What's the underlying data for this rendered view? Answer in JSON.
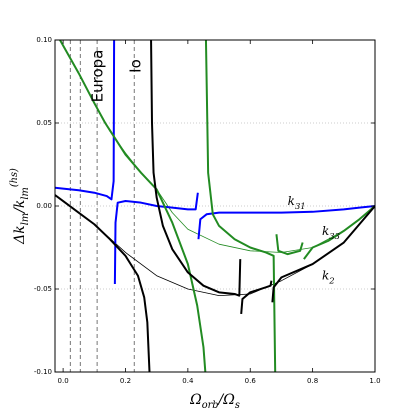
{
  "chart_data": {
    "type": "line",
    "xlabel": [
      {
        "text": "Ω"
      },
      {
        "text": "orb",
        "sub": true
      },
      {
        "text": "/Ω"
      },
      {
        "text": "s",
        "sub": true
      }
    ],
    "ylabel": [
      {
        "text": "Δk"
      },
      {
        "text": "lm",
        "sub": true
      },
      {
        "text": "/k"
      },
      {
        "text": "lm",
        "sub": true
      },
      {
        "text": "(hs)",
        "sup": true
      }
    ],
    "xlim": [
      -0.026,
      1.0
    ],
    "ylim": [
      -0.1,
      0.1
    ],
    "xticks": [
      {
        "value": 0,
        "label": "0.0"
      },
      0.2,
      0.4,
      0.6,
      0.8,
      {
        "value": 1,
        "label": "1.0"
      }
    ],
    "yticks": [
      {
        "value": -0.1,
        "label": "-0.10"
      },
      -0.05,
      {
        "value": 0,
        "label": "0.00"
      },
      0.05,
      {
        "value": 0.1,
        "label": "0.10"
      }
    ],
    "grid": "y",
    "vlines": [
      0.023,
      0.055,
      0.109,
      0.228
    ],
    "annotations": [
      {
        "text": "Europa"
      },
      {
        "text": "Io"
      }
    ],
    "series": [
      {
        "color": "#228b22",
        "linewidth": 0.8,
        "x": [
          -0.01,
          0.05,
          0.1,
          0.15,
          0.2,
          0.25,
          0.3,
          0.35,
          0.4,
          0.5,
          0.6,
          0.7,
          0.8,
          0.9,
          0.95,
          1.0
        ],
        "values": [
          0.1,
          0.08,
          0.062,
          0.045,
          0.032,
          0.02,
          0.01,
          -0.004,
          -0.014,
          -0.023,
          -0.027,
          -0.028,
          -0.025,
          -0.015,
          -0.008,
          0.0
        ]
      },
      {
        "color": "#000000",
        "linewidth": 0.8,
        "x": [
          -0.026,
          0.0,
          0.05,
          0.1,
          0.2,
          0.3,
          0.4,
          0.5,
          0.6,
          0.7,
          0.8,
          0.9,
          0.95,
          1.0
        ],
        "values": [
          0.0066,
          0.003,
          -0.004,
          -0.011,
          -0.028,
          -0.042,
          -0.05,
          -0.054,
          -0.053,
          -0.045,
          -0.035,
          -0.022,
          -0.011,
          0.0
        ]
      },
      {
        "name": [
          {
            "text": "k"
          },
          {
            "text": "31",
            "sub": true
          }
        ],
        "color": "#0000ff",
        "linewidth": 2,
        "x": [
          -0.026,
          0.0,
          0.05,
          0.1,
          0.14,
          0.155,
          0.162,
          0.1635,
          null,
          0.166,
          0.168,
          0.175,
          0.2,
          0.25,
          0.3,
          0.35,
          0.4,
          0.425,
          0.432,
          null,
          0.434,
          0.44,
          0.46,
          0.5,
          0.6,
          0.7,
          0.8,
          0.9,
          0.95,
          1.0
        ],
        "values": [
          0.011,
          0.0105,
          0.0095,
          0.008,
          0.006,
          0.004,
          0.015,
          0.1,
          null,
          -0.047,
          -0.01,
          0.002,
          0.003,
          0.002,
          0.0,
          -0.001,
          -0.002,
          -0.002,
          0.008,
          null,
          -0.02,
          -0.008,
          -0.005,
          -0.004,
          -0.004,
          -0.004,
          -0.0035,
          -0.002,
          -0.001,
          0.0
        ]
      },
      {
        "name": [
          {
            "text": "k"
          },
          {
            "text": "33",
            "sub": true
          }
        ],
        "color": "#228b22",
        "linewidth": 2,
        "x": [
          -0.01,
          0.05,
          0.1,
          0.135,
          0.2,
          0.25,
          0.3,
          0.35,
          0.4,
          0.43,
          0.45,
          0.456,
          null,
          0.458,
          0.465,
          0.48,
          0.5,
          0.55,
          0.6,
          0.65,
          0.675,
          0.68,
          null,
          0.684,
          0.69,
          0.72,
          0.76,
          0.768,
          null,
          0.772,
          0.8,
          0.85,
          0.9,
          0.95,
          1.0
        ],
        "values": [
          0.1,
          0.08,
          0.062,
          0.05,
          0.031,
          0.02,
          0.01,
          -0.01,
          -0.035,
          -0.06,
          -0.085,
          -0.1,
          null,
          0.1,
          0.02,
          -0.005,
          -0.012,
          -0.02,
          -0.025,
          -0.028,
          -0.03,
          -0.1,
          null,
          -0.017,
          -0.027,
          -0.029,
          -0.027,
          -0.022,
          null,
          -0.032,
          -0.025,
          -0.021,
          -0.015,
          -0.008,
          0.0
        ]
      },
      {
        "name": [
          {
            "text": "k"
          },
          {
            "text": "2",
            "sub": true
          }
        ],
        "color": "#000000",
        "linewidth": 2,
        "x": [
          -0.026,
          0.0,
          0.05,
          0.1,
          0.15,
          0.2,
          0.24,
          0.26,
          0.27,
          0.277,
          null,
          0.282,
          0.285,
          0.29,
          0.3,
          0.32,
          0.35,
          0.4,
          0.45,
          0.5,
          0.55,
          0.565,
          0.568,
          null,
          0.571,
          0.575,
          0.6,
          0.65,
          0.665,
          0.668,
          null,
          0.671,
          0.675,
          0.7,
          0.8,
          0.9,
          0.95,
          1.0
        ],
        "values": [
          0.0066,
          0.003,
          -0.004,
          -0.011,
          -0.02,
          -0.03,
          -0.042,
          -0.055,
          -0.07,
          -0.1,
          null,
          0.1,
          0.05,
          0.02,
          0.005,
          -0.012,
          -0.026,
          -0.04,
          -0.048,
          -0.052,
          -0.053,
          -0.054,
          -0.032,
          null,
          -0.065,
          -0.056,
          -0.052,
          -0.049,
          -0.048,
          -0.045,
          null,
          -0.058,
          -0.049,
          -0.043,
          -0.035,
          -0.022,
          -0.011,
          0.0
        ]
      }
    ]
  }
}
